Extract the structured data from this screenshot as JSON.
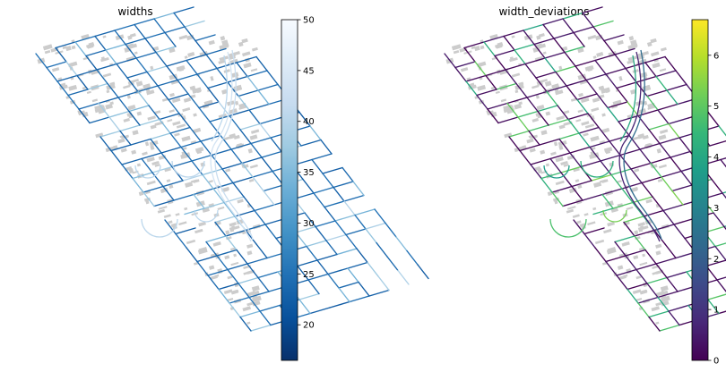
{
  "chart_data": [
    {
      "type": "map",
      "title": "widths",
      "colormap": "Blues_r",
      "colorbar": {
        "range": [
          16.5,
          50
        ],
        "ticks": [
          20,
          25,
          30,
          35,
          40,
          45,
          50
        ],
        "tick_labels": [
          "20",
          "25",
          "30",
          "35",
          "40",
          "45",
          "50"
        ]
      },
      "legend": "none",
      "grid": false,
      "building_color": "#cccccc",
      "street_value_typical": 24
    },
    {
      "type": "map",
      "title": "width_deviations",
      "colormap": "viridis",
      "colorbar": {
        "range": [
          0,
          6.7
        ],
        "ticks": [
          0,
          1,
          2,
          3,
          4,
          5,
          6
        ],
        "tick_labels": [
          "0",
          "1",
          "2",
          "3",
          "4",
          "5",
          "6"
        ]
      },
      "legend": "none",
      "grid": false,
      "building_color": "#cccccc",
      "street_value_typical": 0.3
    }
  ],
  "colors": {
    "blues_stops": [
      "#08306b",
      "#08519c",
      "#2171b5",
      "#4292c6",
      "#6baed6",
      "#9ecae1",
      "#c6dbef",
      "#deebf7",
      "#f7fbff"
    ],
    "viridis_stops": [
      "#440154",
      "#482878",
      "#3e4a89",
      "#31688e",
      "#26828e",
      "#1f9e89",
      "#35b779",
      "#6ece58",
      "#b5de2b",
      "#fde725"
    ]
  }
}
